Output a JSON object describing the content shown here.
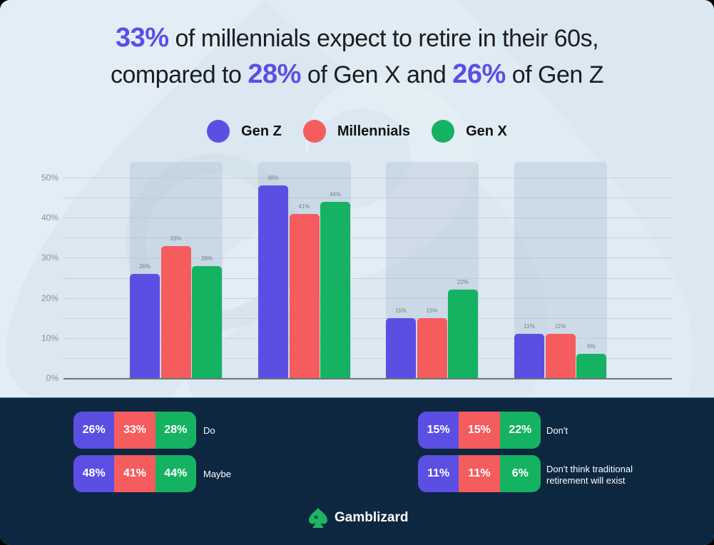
{
  "headline": {
    "line1": [
      {
        "text": "33%",
        "highlight": true
      },
      {
        "text": " of millennials expect to retire in their 60s,",
        "highlight": false
      }
    ],
    "line2": [
      {
        "text": "compared to ",
        "highlight": false
      },
      {
        "text": "28%",
        "highlight": true
      },
      {
        "text": " of Gen X and ",
        "highlight": false
      },
      {
        "text": "26%",
        "highlight": true
      },
      {
        "text": " of Gen Z",
        "highlight": false
      }
    ]
  },
  "legend": [
    {
      "label": "Gen Z",
      "color": "#5b4fe3"
    },
    {
      "label": "Millennials",
      "color": "#f45c5e"
    },
    {
      "label": "Gen X",
      "color": "#15b262"
    }
  ],
  "colors": {
    "gen_z": "#5b4fe3",
    "millennials": "#f45c5e",
    "gen_x": "#15b262",
    "highlight": "#5b4fe3",
    "dark_panel": "#0d2740",
    "light_bg": "#dbe8f1"
  },
  "chart_data": {
    "type": "bar",
    "title": "33% of millennials expect to retire in their 60s, compared to 28% of Gen X and 26% of Gen Z",
    "categories": [
      "Do",
      "Maybe",
      "Don't",
      "Don't think traditional retirement will exist"
    ],
    "series": [
      {
        "name": "Gen Z",
        "color": "#5b4fe3",
        "values": [
          26,
          48,
          15,
          11
        ]
      },
      {
        "name": "Millennials",
        "color": "#f45c5e",
        "values": [
          33,
          41,
          15,
          11
        ]
      },
      {
        "name": "Gen X",
        "color": "#15b262",
        "values": [
          28,
          44,
          22,
          6
        ]
      }
    ],
    "data_labels": [
      [
        "26%",
        "48%",
        "15%",
        "11%"
      ],
      [
        "33%",
        "41%",
        "15%",
        "11%"
      ],
      [
        "28%",
        "44%",
        "22%",
        "6%"
      ]
    ],
    "xlabel": "",
    "ylabel": "",
    "yticks": [
      "0%",
      "10%",
      "20%",
      "30%",
      "40%",
      "50%"
    ],
    "ylim": [
      0,
      50
    ],
    "grid": true,
    "legend_position": "top"
  },
  "summary": [
    {
      "label": "Do",
      "values": [
        "26%",
        "33%",
        "28%"
      ]
    },
    {
      "label": "Maybe",
      "values": [
        "48%",
        "41%",
        "44%"
      ]
    },
    {
      "label": "Don't",
      "values": [
        "15%",
        "15%",
        "22%"
      ]
    },
    {
      "label": "Don't think traditional retirement will exist",
      "label_lines": [
        "Don't think traditional",
        "retirement will exist"
      ],
      "values": [
        "11%",
        "11%",
        "6%"
      ]
    }
  ],
  "brand": {
    "name": "Gamblizard",
    "icon": "spade-lizard-logo-icon"
  }
}
